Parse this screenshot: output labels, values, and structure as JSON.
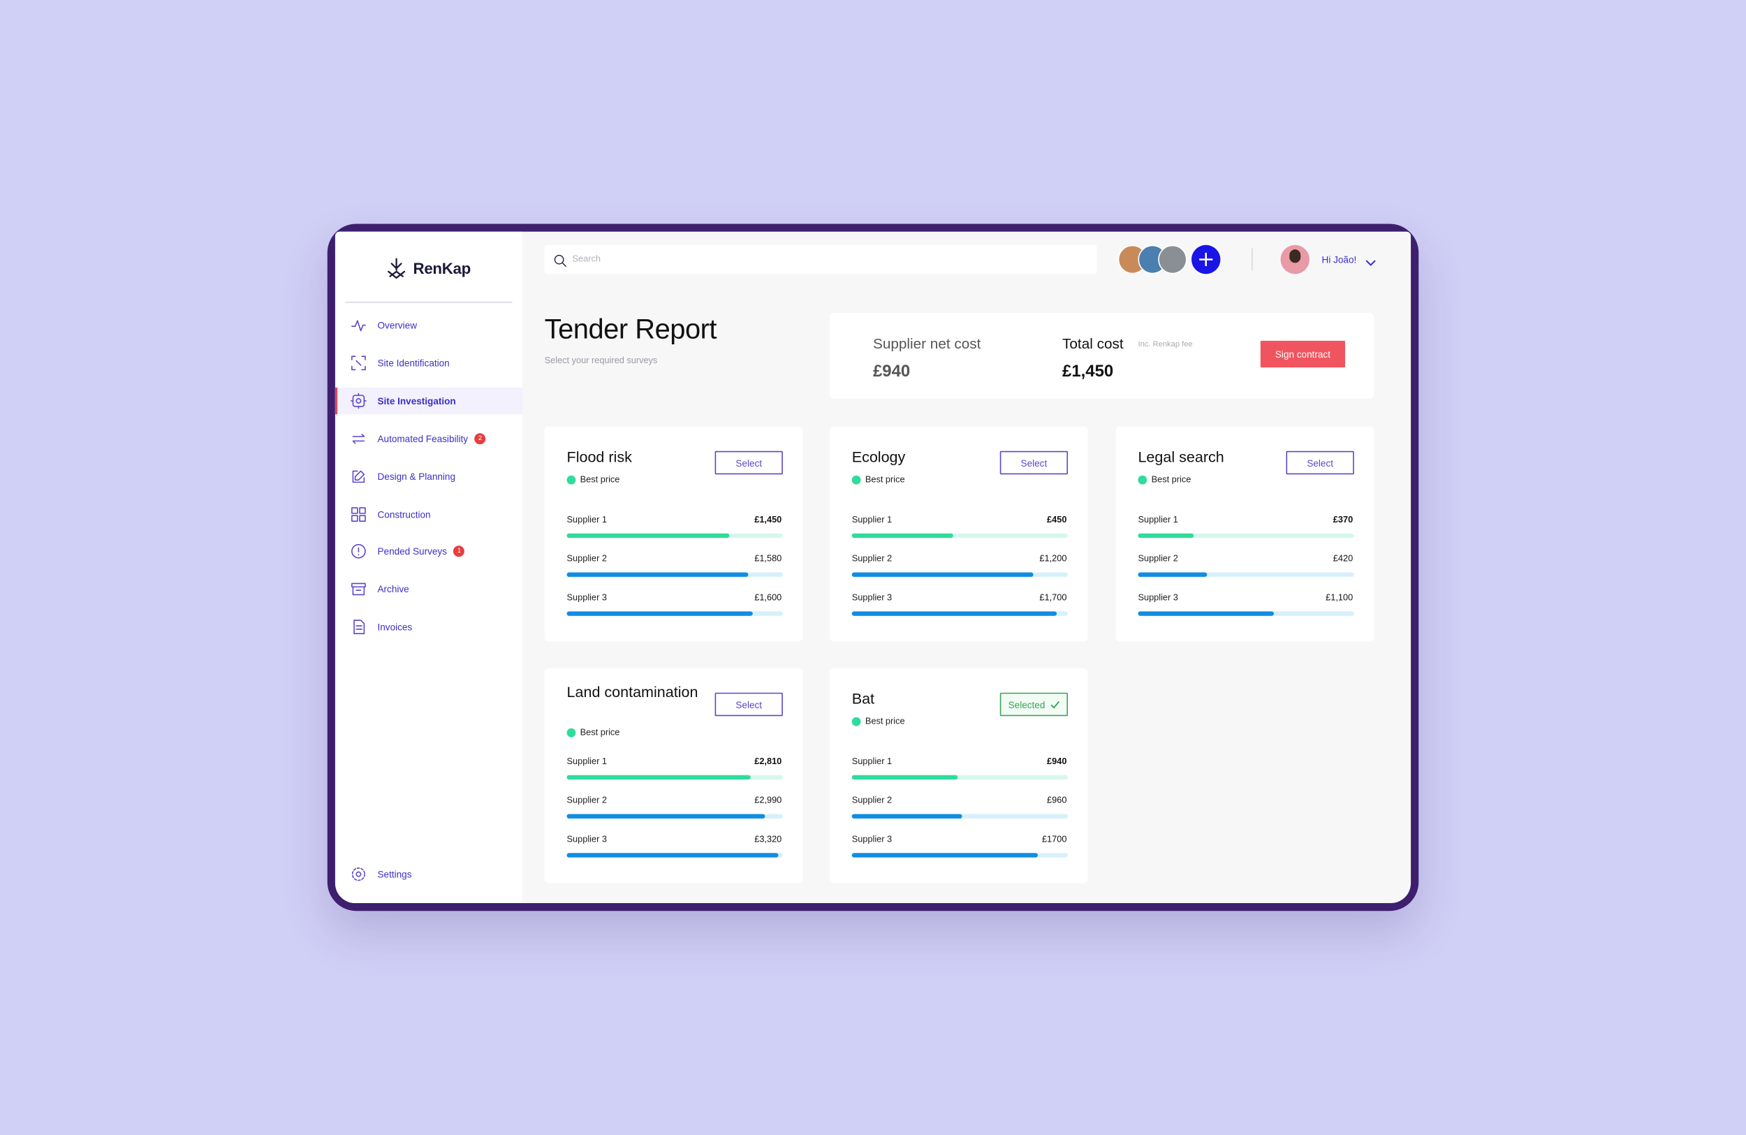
{
  "sidebar": {
    "brand": "RenKap",
    "nav": [
      {
        "label": "Overview"
      },
      {
        "label": "Site Identification"
      },
      {
        "label": "Site Investigation",
        "active": true
      },
      {
        "label": "Automated Feasibility",
        "badge": 2
      },
      {
        "label": "Design & Planning"
      },
      {
        "label": "Construction"
      },
      {
        "label": "Pended Surveys",
        "badge": 1
      },
      {
        "label": "Archive"
      },
      {
        "label": "Invoices"
      }
    ],
    "settings": "Settings"
  },
  "topbar": {
    "search": "Search",
    "greeting": "Hi João!"
  },
  "header": {
    "title": "Tender Report",
    "subtitle": "Select your required surveys"
  },
  "summary": {
    "net_label": "Supplier net cost",
    "net_value": "£940",
    "total_label": "Total cost",
    "total_note": "Inc. Renkap fee",
    "total_value": "£1,450",
    "action": "Sign contract"
  },
  "surveys": [
    {
      "title": "Flood risk",
      "button": "Select",
      "tag": "Best price",
      "suppliers": [
        {
          "name": "Supplier 1",
          "price": "£1,450",
          "bar": 75
        },
        {
          "name": "Supplier 2",
          "price": "£1,580",
          "bar": 84
        },
        {
          "name": "Supplier 3",
          "price": "£1,600",
          "bar": 86
        }
      ]
    },
    {
      "title": "Ecology",
      "button": "Select",
      "tag": "Best price",
      "suppliers": [
        {
          "name": "Supplier 1",
          "price": "£450",
          "bar": 47
        },
        {
          "name": "Supplier 2",
          "price": "£1,200",
          "bar": 84
        },
        {
          "name": "Supplier 3",
          "price": "£1,700",
          "bar": 95
        }
      ]
    },
    {
      "title": "Legal search",
      "button": "Select",
      "tag": "Best price",
      "suppliers": [
        {
          "name": "Supplier 1",
          "price": "£370",
          "bar": 26
        },
        {
          "name": "Supplier 2",
          "price": "£420",
          "bar": 32
        },
        {
          "name": "Supplier 3",
          "price": "£1,100",
          "bar": 63
        }
      ]
    },
    {
      "title": "Land contamination",
      "button": "Select",
      "tag": "Best price",
      "suppliers": [
        {
          "name": "Supplier 1",
          "price": "£2,810",
          "bar": 85
        },
        {
          "name": "Supplier 2",
          "price": "£2,990",
          "bar": 92
        },
        {
          "name": "Supplier 3",
          "price": "£3,320",
          "bar": 98
        }
      ]
    },
    {
      "title": "Bat",
      "button": "Selected",
      "selected": true,
      "tag": "Best price",
      "suppliers": [
        {
          "name": "Supplier 1",
          "price": "£940",
          "bar": 49
        },
        {
          "name": "Supplier 2",
          "price": "£960",
          "bar": 51
        },
        {
          "name": "Supplier 3",
          "price": "£1700",
          "bar": 86
        }
      ]
    }
  ]
}
